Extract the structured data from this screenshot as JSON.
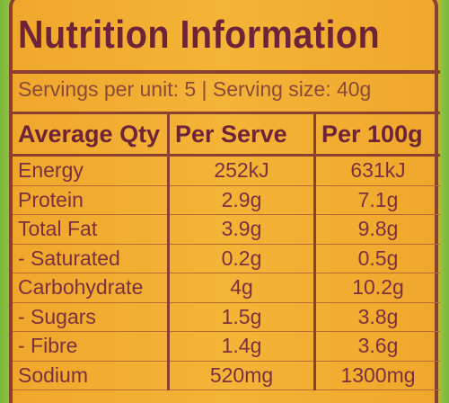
{
  "title": "Nutrition Information",
  "servings": "Servings per unit: 5 | Serving size: 40g",
  "table": {
    "header": [
      "Average Qty",
      "Per Serve",
      "Per 100g"
    ],
    "rows": [
      [
        "Energy",
        "252kJ",
        "631kJ"
      ],
      [
        "Protein",
        "2.9g",
        "7.1g"
      ],
      [
        "Total Fat",
        "3.9g",
        "9.8g"
      ],
      [
        "- Saturated",
        "0.2g",
        "0.5g"
      ],
      [
        "Carbohydrate",
        "4g",
        "10.2g"
      ],
      [
        "- Sugars",
        "1.5g",
        "3.8g"
      ],
      [
        "- Fibre",
        "1.4g",
        "3.6g"
      ],
      [
        "Sodium",
        "520mg",
        "1300mg"
      ]
    ]
  }
}
